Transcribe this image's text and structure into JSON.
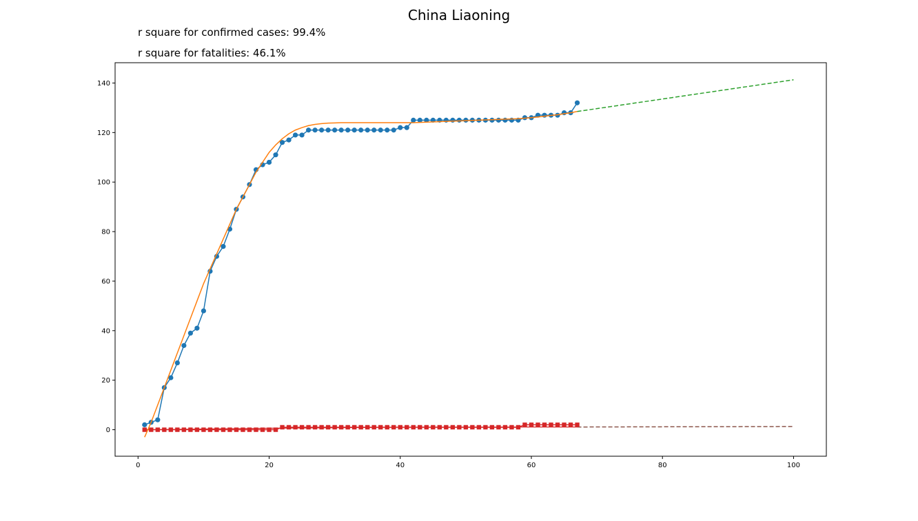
{
  "chart_data": {
    "type": "line",
    "title": "China Liaoning",
    "annotations": [
      "r square for confirmed cases: 99.4%",
      "r square for fatalities: 46.1%"
    ],
    "xlabel": "",
    "ylabel": "",
    "xlim": [
      -3.5,
      105
    ],
    "ylim": [
      -10.7,
      148.2
    ],
    "xticks": [
      0,
      20,
      40,
      60,
      80,
      100
    ],
    "yticks": [
      0,
      20,
      40,
      60,
      80,
      100,
      120,
      140
    ],
    "grid": false,
    "colors": {
      "confirmed": "#1f77b4",
      "confirmed_fit": "#ff7f0e",
      "confirmed_projection": "#2ca02c",
      "fatalities": "#d62728",
      "fatalities_projection": "#8c564b"
    },
    "series": [
      {
        "key": "confirmed",
        "style": "line-markers-circle",
        "x": [
          1,
          2,
          3,
          4,
          5,
          6,
          7,
          8,
          9,
          10,
          11,
          12,
          13,
          14,
          15,
          16,
          17,
          18,
          19,
          20,
          21,
          22,
          23,
          24,
          25,
          26,
          27,
          28,
          29,
          30,
          31,
          32,
          33,
          34,
          35,
          36,
          37,
          38,
          39,
          40,
          41,
          42,
          43,
          44,
          45,
          46,
          47,
          48,
          49,
          50,
          51,
          52,
          53,
          54,
          55,
          56,
          57,
          58,
          59,
          60,
          61,
          62,
          63,
          64,
          65,
          66,
          67
        ],
        "y": [
          2,
          3,
          4,
          17,
          21,
          27,
          34,
          39,
          41,
          48,
          64,
          70,
          74,
          81,
          89,
          94,
          99,
          105,
          107,
          108,
          111,
          116,
          117,
          119,
          119,
          121,
          121,
          121,
          121,
          121,
          121,
          121,
          121,
          121,
          121,
          121,
          121,
          121,
          121,
          122,
          122,
          125,
          125,
          125,
          125,
          125,
          125,
          125,
          125,
          125,
          125,
          125,
          125,
          125,
          125,
          125,
          125,
          125,
          126,
          126,
          127,
          127,
          127,
          127,
          128,
          128,
          132
        ]
      },
      {
        "key": "confirmed_fit",
        "style": "line",
        "x": [
          1,
          2,
          3,
          4,
          5,
          6,
          7,
          8,
          9,
          10,
          11,
          12,
          13,
          14,
          15,
          16,
          17,
          18,
          19,
          20,
          21,
          22,
          23,
          24,
          25,
          26,
          27,
          28,
          29,
          30,
          31,
          32,
          33,
          34,
          35,
          36,
          37,
          38,
          39,
          40,
          41,
          42,
          43,
          44,
          45,
          46,
          47,
          48,
          49,
          50,
          51,
          52,
          53,
          54,
          55,
          56,
          57,
          58,
          59,
          60,
          61,
          62,
          63,
          64,
          65,
          66,
          67
        ],
        "y": [
          -3,
          3,
          10,
          17,
          24,
          31,
          38,
          45,
          52,
          59,
          65,
          71,
          77,
          83,
          89,
          94,
          99,
          104,
          108,
          112,
          115,
          117.5,
          119.5,
          121,
          122,
          122.8,
          123.3,
          123.6,
          123.8,
          123.9,
          124,
          124,
          124,
          124,
          124,
          124,
          124,
          124,
          124,
          124,
          124,
          124,
          124.1,
          124.2,
          124.3,
          124.4,
          124.5,
          124.6,
          124.7,
          124.8,
          124.9,
          125,
          125.1,
          125.2,
          125.3,
          125.4,
          125.5,
          125.6,
          125.8,
          126,
          126.3,
          126.6,
          126.9,
          127.2,
          127.6,
          128,
          128.5
        ]
      },
      {
        "key": "confirmed_projection",
        "style": "dashed",
        "x": [
          67,
          100
        ],
        "y": [
          128.5,
          141.3
        ]
      },
      {
        "key": "fatalities",
        "style": "line-markers-square",
        "x": [
          1,
          2,
          3,
          4,
          5,
          6,
          7,
          8,
          9,
          10,
          11,
          12,
          13,
          14,
          15,
          16,
          17,
          18,
          19,
          20,
          21,
          22,
          23,
          24,
          25,
          26,
          27,
          28,
          29,
          30,
          31,
          32,
          33,
          34,
          35,
          36,
          37,
          38,
          39,
          40,
          41,
          42,
          43,
          44,
          45,
          46,
          47,
          48,
          49,
          50,
          51,
          52,
          53,
          54,
          55,
          56,
          57,
          58,
          59,
          60,
          61,
          62,
          63,
          64,
          65,
          66,
          67
        ],
        "y": [
          0,
          0,
          0,
          0,
          0,
          0,
          0,
          0,
          0,
          0,
          0,
          0,
          0,
          0,
          0,
          0,
          0,
          0,
          0,
          0,
          0,
          1,
          1,
          1,
          1,
          1,
          1,
          1,
          1,
          1,
          1,
          1,
          1,
          1,
          1,
          1,
          1,
          1,
          1,
          1,
          1,
          1,
          1,
          1,
          1,
          1,
          1,
          1,
          1,
          1,
          1,
          1,
          1,
          1,
          1,
          1,
          1,
          1,
          2,
          2,
          2,
          2,
          2,
          2,
          2,
          2,
          2
        ]
      },
      {
        "key": "fatalities_fit",
        "style": "line",
        "x": [
          1,
          20,
          40,
          60,
          67
        ],
        "y": [
          0,
          0.6,
          1.0,
          1.1,
          1.1
        ]
      },
      {
        "key": "fatalities_projection",
        "style": "dashed",
        "x": [
          67,
          100
        ],
        "y": [
          1.1,
          1.3
        ]
      }
    ]
  }
}
